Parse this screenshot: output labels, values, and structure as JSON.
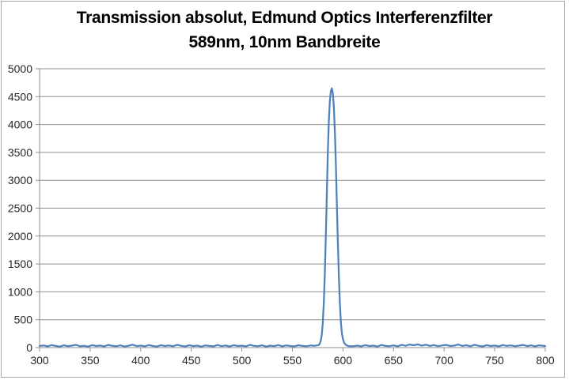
{
  "chart_data": {
    "type": "line",
    "title": "Transmission absolut, Edmund Optics Interferenzfilter 589nm, 10nm Bandbreite",
    "title_lines": [
      "Transmission absolut, Edmund Optics Interferenzfilter",
      "589nm, 10nm Bandbreite"
    ],
    "xlabel": "",
    "ylabel": "",
    "xlim": [
      300,
      800
    ],
    "ylim": [
      0,
      5000
    ],
    "xticks": [
      300,
      350,
      400,
      450,
      500,
      550,
      600,
      650,
      700,
      750,
      800
    ],
    "yticks": [
      0,
      500,
      1000,
      1500,
      2000,
      2500,
      3000,
      3500,
      4000,
      4500,
      5000
    ],
    "grid": "horizontal",
    "legend": "none",
    "colors": {
      "line": "#4F81BD",
      "grid": "#8E8E8E",
      "axis": "#8E8E8E",
      "tick_label": "#262626",
      "border": "#A6A6A6"
    },
    "series": [
      {
        "x": [
          300,
          304,
          308,
          312,
          316,
          320,
          324,
          328,
          332,
          336,
          340,
          344,
          348,
          352,
          356,
          360,
          364,
          368,
          372,
          376,
          380,
          384,
          388,
          392,
          396,
          400,
          404,
          408,
          412,
          416,
          420,
          424,
          428,
          432,
          436,
          440,
          444,
          448,
          452,
          456,
          460,
          464,
          468,
          472,
          476,
          480,
          484,
          488,
          492,
          496,
          500,
          504,
          508,
          512,
          516,
          520,
          524,
          528,
          532,
          536,
          540,
          544,
          548,
          552,
          556,
          560,
          564,
          568,
          572,
          576,
          577,
          578,
          579,
          580,
          581,
          582,
          583,
          584,
          585,
          586,
          587,
          588,
          589,
          590,
          591,
          592,
          593,
          594,
          595,
          596,
          597,
          598,
          599,
          600,
          601,
          602,
          603,
          604,
          605,
          606,
          610,
          614,
          618,
          622,
          626,
          630,
          634,
          638,
          642,
          646,
          650,
          654,
          658,
          662,
          666,
          670,
          674,
          678,
          682,
          686,
          690,
          694,
          698,
          702,
          706,
          710,
          714,
          718,
          722,
          726,
          730,
          734,
          738,
          742,
          746,
          750,
          754,
          758,
          762,
          766,
          770,
          774,
          778,
          782,
          786,
          790,
          794,
          798,
          800
        ],
        "y": [
          28,
          38,
          22,
          45,
          30,
          19,
          41,
          26,
          35,
          50,
          24,
          33,
          18,
          44,
          29,
          37,
          21,
          48,
          31,
          25,
          40,
          20,
          34,
          52,
          27,
          36,
          23,
          46,
          30,
          19,
          42,
          28,
          38,
          24,
          49,
          32,
          21,
          43,
          27,
          35,
          18,
          40,
          30,
          23,
          47,
          26,
          37,
          20,
          44,
          29,
          34,
          22,
          50,
          31,
          25,
          41,
          19,
          36,
          27,
          45,
          23,
          39,
          28,
          21,
          43,
          30,
          24,
          38,
          32,
          45,
          70,
          120,
          230,
          430,
          780,
          1300,
          1980,
          2750,
          3480,
          4050,
          4420,
          4600,
          4650,
          4560,
          4300,
          3850,
          3250,
          2550,
          1850,
          1230,
          760,
          440,
          250,
          150,
          95,
          65,
          48,
          38,
          30,
          26,
          24,
          36,
          22,
          44,
          28,
          35,
          20,
          47,
          30,
          25,
          40,
          22,
          50,
          33,
          55,
          42,
          58,
          36,
          52,
          30,
          45,
          26,
          38,
          48,
          28,
          35,
          55,
          30,
          42,
          24,
          50,
          32,
          21,
          44,
          29,
          37,
          23,
          46,
          31,
          40,
          25,
          35,
          48,
          27,
          39,
          22,
          41,
          33,
          28
        ]
      }
    ]
  }
}
